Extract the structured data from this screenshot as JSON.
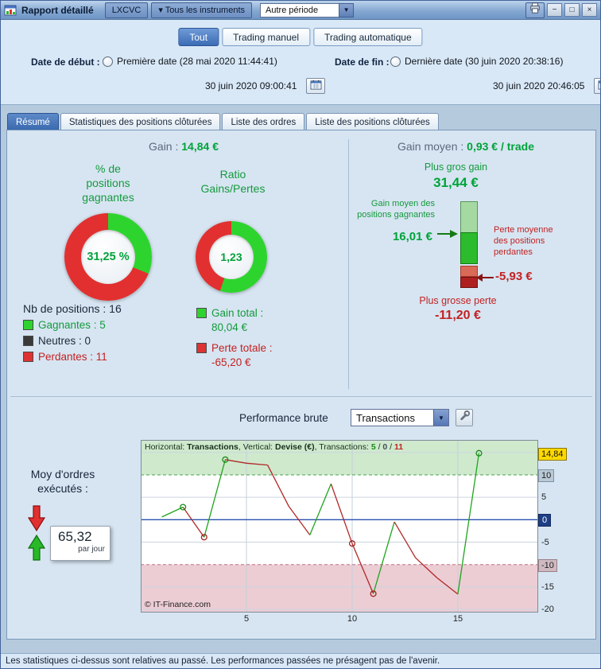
{
  "window": {
    "title": "Rapport détaillé",
    "instrument_button": "LXCVC",
    "all_instruments_button": "▾ Tous les instruments",
    "period_select": "Autre période",
    "controls": {
      "minimize": "−",
      "maximize": "□",
      "close": "×"
    }
  },
  "glyphs": {
    "dropdown_arrow": "▼"
  },
  "filter_tabs": {
    "tout": {
      "label": "Tout",
      "active": true
    },
    "manuel": {
      "label": "Trading manuel",
      "active": false
    },
    "auto": {
      "label": "Trading automatique",
      "active": false
    }
  },
  "dates": {
    "start_label": "Date de début :",
    "start_first": "Première date (28 mai 2020 11:44:41)",
    "start_first_selected": false,
    "start_custom": "30 juin 2020 09:00:41",
    "start_custom_selected": true,
    "end_label": "Date de fin :",
    "end_last": "Dernière date (30 juin 2020 20:38:16)",
    "end_last_selected": false,
    "end_custom": "30 juin 2020 20:46:05",
    "end_custom_selected": true
  },
  "tabs": {
    "resume": {
      "label": "Résumé",
      "active": true
    },
    "stats": {
      "label": "Statistiques des positions clôturées",
      "active": false
    },
    "ordres": {
      "label": "Liste des ordres",
      "active": false
    },
    "positions": {
      "label": "Liste des positions clôturées",
      "active": false
    }
  },
  "summary": {
    "gain_label": "Gain :",
    "gain_value": "14,84 €",
    "pct_title": "% de positions gagnantes",
    "pct_value": "31,25 %",
    "pct_number": 31.25,
    "ratio_title": "Ratio Gains/Pertes",
    "ratio_value": "1,23",
    "ratio_green_pct": 55.1,
    "nb_positions": "Nb de positions : 16",
    "gagnantes": "Gagnantes : 5",
    "neutres": "Neutres : 0",
    "perdantes": "Perdantes : 11",
    "gain_total_label": "Gain total :",
    "gain_total_value": "80,04 €",
    "perte_totale_label": "Perte totale :",
    "perte_totale_value": "-65,20 €"
  },
  "average": {
    "title_label": "Gain moyen :",
    "title_value": "0,93 € / trade",
    "max_gain_label": "Plus gros gain",
    "max_gain_value": "31,44 €",
    "avg_gain_label": "Gain moyen des positions gagnantes",
    "avg_gain_value": "16,01 €",
    "avg_loss_label": "Perte moyenne des positions perdantes",
    "avg_loss_value": "-5,93 €",
    "max_loss_label": "Plus grosse perte",
    "max_loss_value": "-11,20 €",
    "bars": {
      "max_gain": 31.44,
      "avg_gain": 16.01,
      "avg_loss": -5.93,
      "max_loss": -11.2
    }
  },
  "performance": {
    "label": "Performance brute",
    "select_value": "Transactions",
    "moy_label": "Moy d'ordres exécutés :",
    "moy_value": "65,32",
    "moy_unit": "par jour",
    "copyright": "© IT-Finance.com"
  },
  "chart_data": {
    "type": "line",
    "header": {
      "prefix1": "Horizontal: ",
      "bold1": "Transactions",
      "prefix2": ", Vertical: ",
      "bold2": "Devise (€)",
      "prefix3": ", Transactions: ",
      "wins": "5",
      "sep1": " / ",
      "neutral": "0",
      "sep2": " / ",
      "losses": "11"
    },
    "xlabel": "Transactions",
    "ylabel": "Devise (€)",
    "x": [
      1,
      2,
      3,
      4,
      5,
      6,
      7,
      8,
      9,
      10,
      11,
      12,
      13,
      14,
      15,
      16
    ],
    "y": [
      0.6,
      2.8,
      -3.9,
      13.4,
      12.6,
      12.2,
      3.0,
      -3.4,
      8.0,
      -5.3,
      -16.5,
      -0.5,
      -8.5,
      -12.9,
      -16.6,
      14.84
    ],
    "markers": [
      2,
      3,
      4,
      10,
      11,
      16
    ],
    "x_ticks": [
      5,
      10,
      15
    ],
    "y_ticks": [
      {
        "v": 14.84,
        "label": "14,84",
        "style": "current"
      },
      {
        "v": 10,
        "label": "10",
        "style": "band-pos"
      },
      {
        "v": 5,
        "label": "5",
        "style": "plain"
      },
      {
        "v": 0,
        "label": "0",
        "style": "zero"
      },
      {
        "v": -5,
        "label": "-5",
        "style": "plain"
      },
      {
        "v": -10,
        "label": "-10",
        "style": "band-neg"
      },
      {
        "v": -15,
        "label": "-15",
        "style": "plain"
      },
      {
        "v": -20,
        "label": "-20",
        "style": "plain"
      }
    ],
    "upper_zone_from": 10,
    "lower_zone_to": -10,
    "y_range": [
      -20.7,
      17.8
    ],
    "x_range": [
      0,
      18.8
    ],
    "final_value": 14.84
  },
  "status_bar": "Les statistiques ci-dessus sont relatives au passé. Les performances passées ne présagent pas de l'avenir."
}
